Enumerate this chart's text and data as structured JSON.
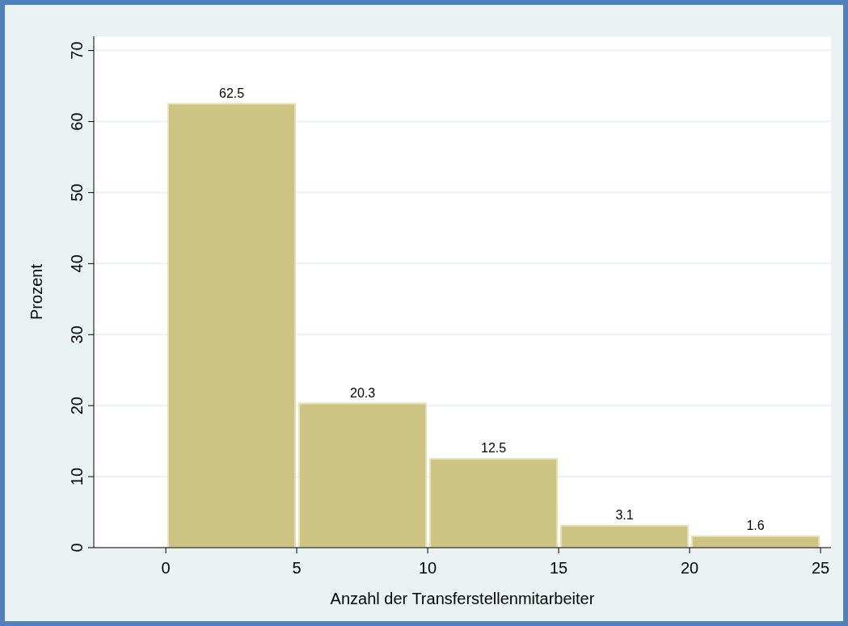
{
  "chart_data": {
    "type": "histogram",
    "xlabel": "Anzahl der Transferstellenmitarbeiter",
    "ylabel": "Prozent",
    "bins": [
      0,
      5,
      10,
      15,
      20,
      25
    ],
    "values": [
      62.5,
      20.3,
      12.5,
      3.1,
      1.6
    ],
    "color": "#cdc383",
    "data_labels": true,
    "xlim": [
      -2.75,
      25.4
    ],
    "xticks": [
      0,
      5,
      10,
      15,
      20,
      25
    ],
    "ylim": [
      0,
      72
    ],
    "yticks": [
      0,
      10,
      20,
      30,
      40,
      50,
      60,
      70
    ],
    "grid": "y"
  }
}
